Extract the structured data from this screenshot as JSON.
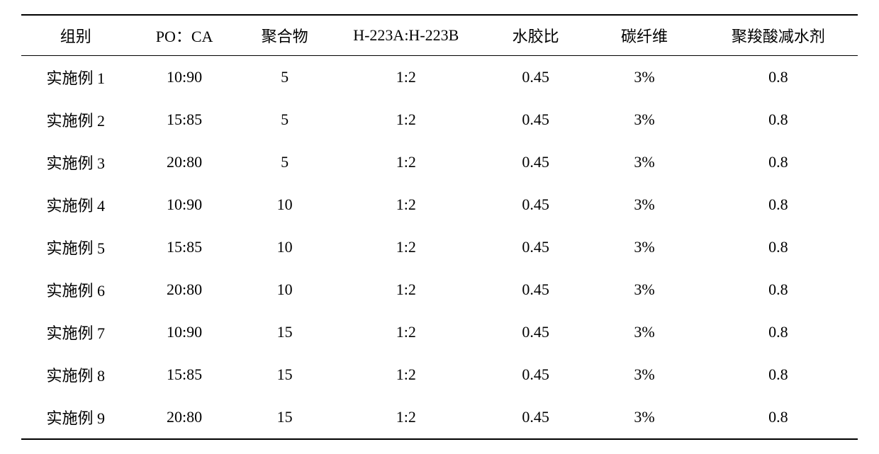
{
  "table": {
    "columns": [
      "组别",
      "PO：CA",
      "聚合物",
      "H-223A:H-223B",
      "水胶比",
      "碳纤维",
      "聚羧酸减水剂"
    ],
    "rows": [
      [
        "实施例 1",
        "10:90",
        "5",
        "1:2",
        "0.45",
        "3%",
        "0.8"
      ],
      [
        "实施例 2",
        "15:85",
        "5",
        "1:2",
        "0.45",
        "3%",
        "0.8"
      ],
      [
        "实施例 3",
        "20:80",
        "5",
        "1:2",
        "0.45",
        "3%",
        "0.8"
      ],
      [
        "实施例 4",
        "10:90",
        "10",
        "1:2",
        "0.45",
        "3%",
        "0.8"
      ],
      [
        "实施例 5",
        "15:85",
        "10",
        "1:2",
        "0.45",
        "3%",
        "0.8"
      ],
      [
        "实施例 6",
        "20:80",
        "10",
        "1:2",
        "0.45",
        "3%",
        "0.8"
      ],
      [
        "实施例 7",
        "10:90",
        "15",
        "1:2",
        "0.45",
        "3%",
        "0.8"
      ],
      [
        "实施例 8",
        "15:85",
        "15",
        "1:2",
        "0.45",
        "3%",
        "0.8"
      ],
      [
        "实施例 9",
        "20:80",
        "15",
        "1:2",
        "0.45",
        "3%",
        "0.8"
      ]
    ],
    "border_color": "#000000",
    "background_color": "#ffffff",
    "text_color": "#000000",
    "font_size": 22,
    "header_border_top_width": 2,
    "header_border_bottom_width": 1.5,
    "footer_border_width": 2,
    "column_widths_pct": [
      13,
      13,
      11,
      18,
      13,
      13,
      19
    ]
  }
}
